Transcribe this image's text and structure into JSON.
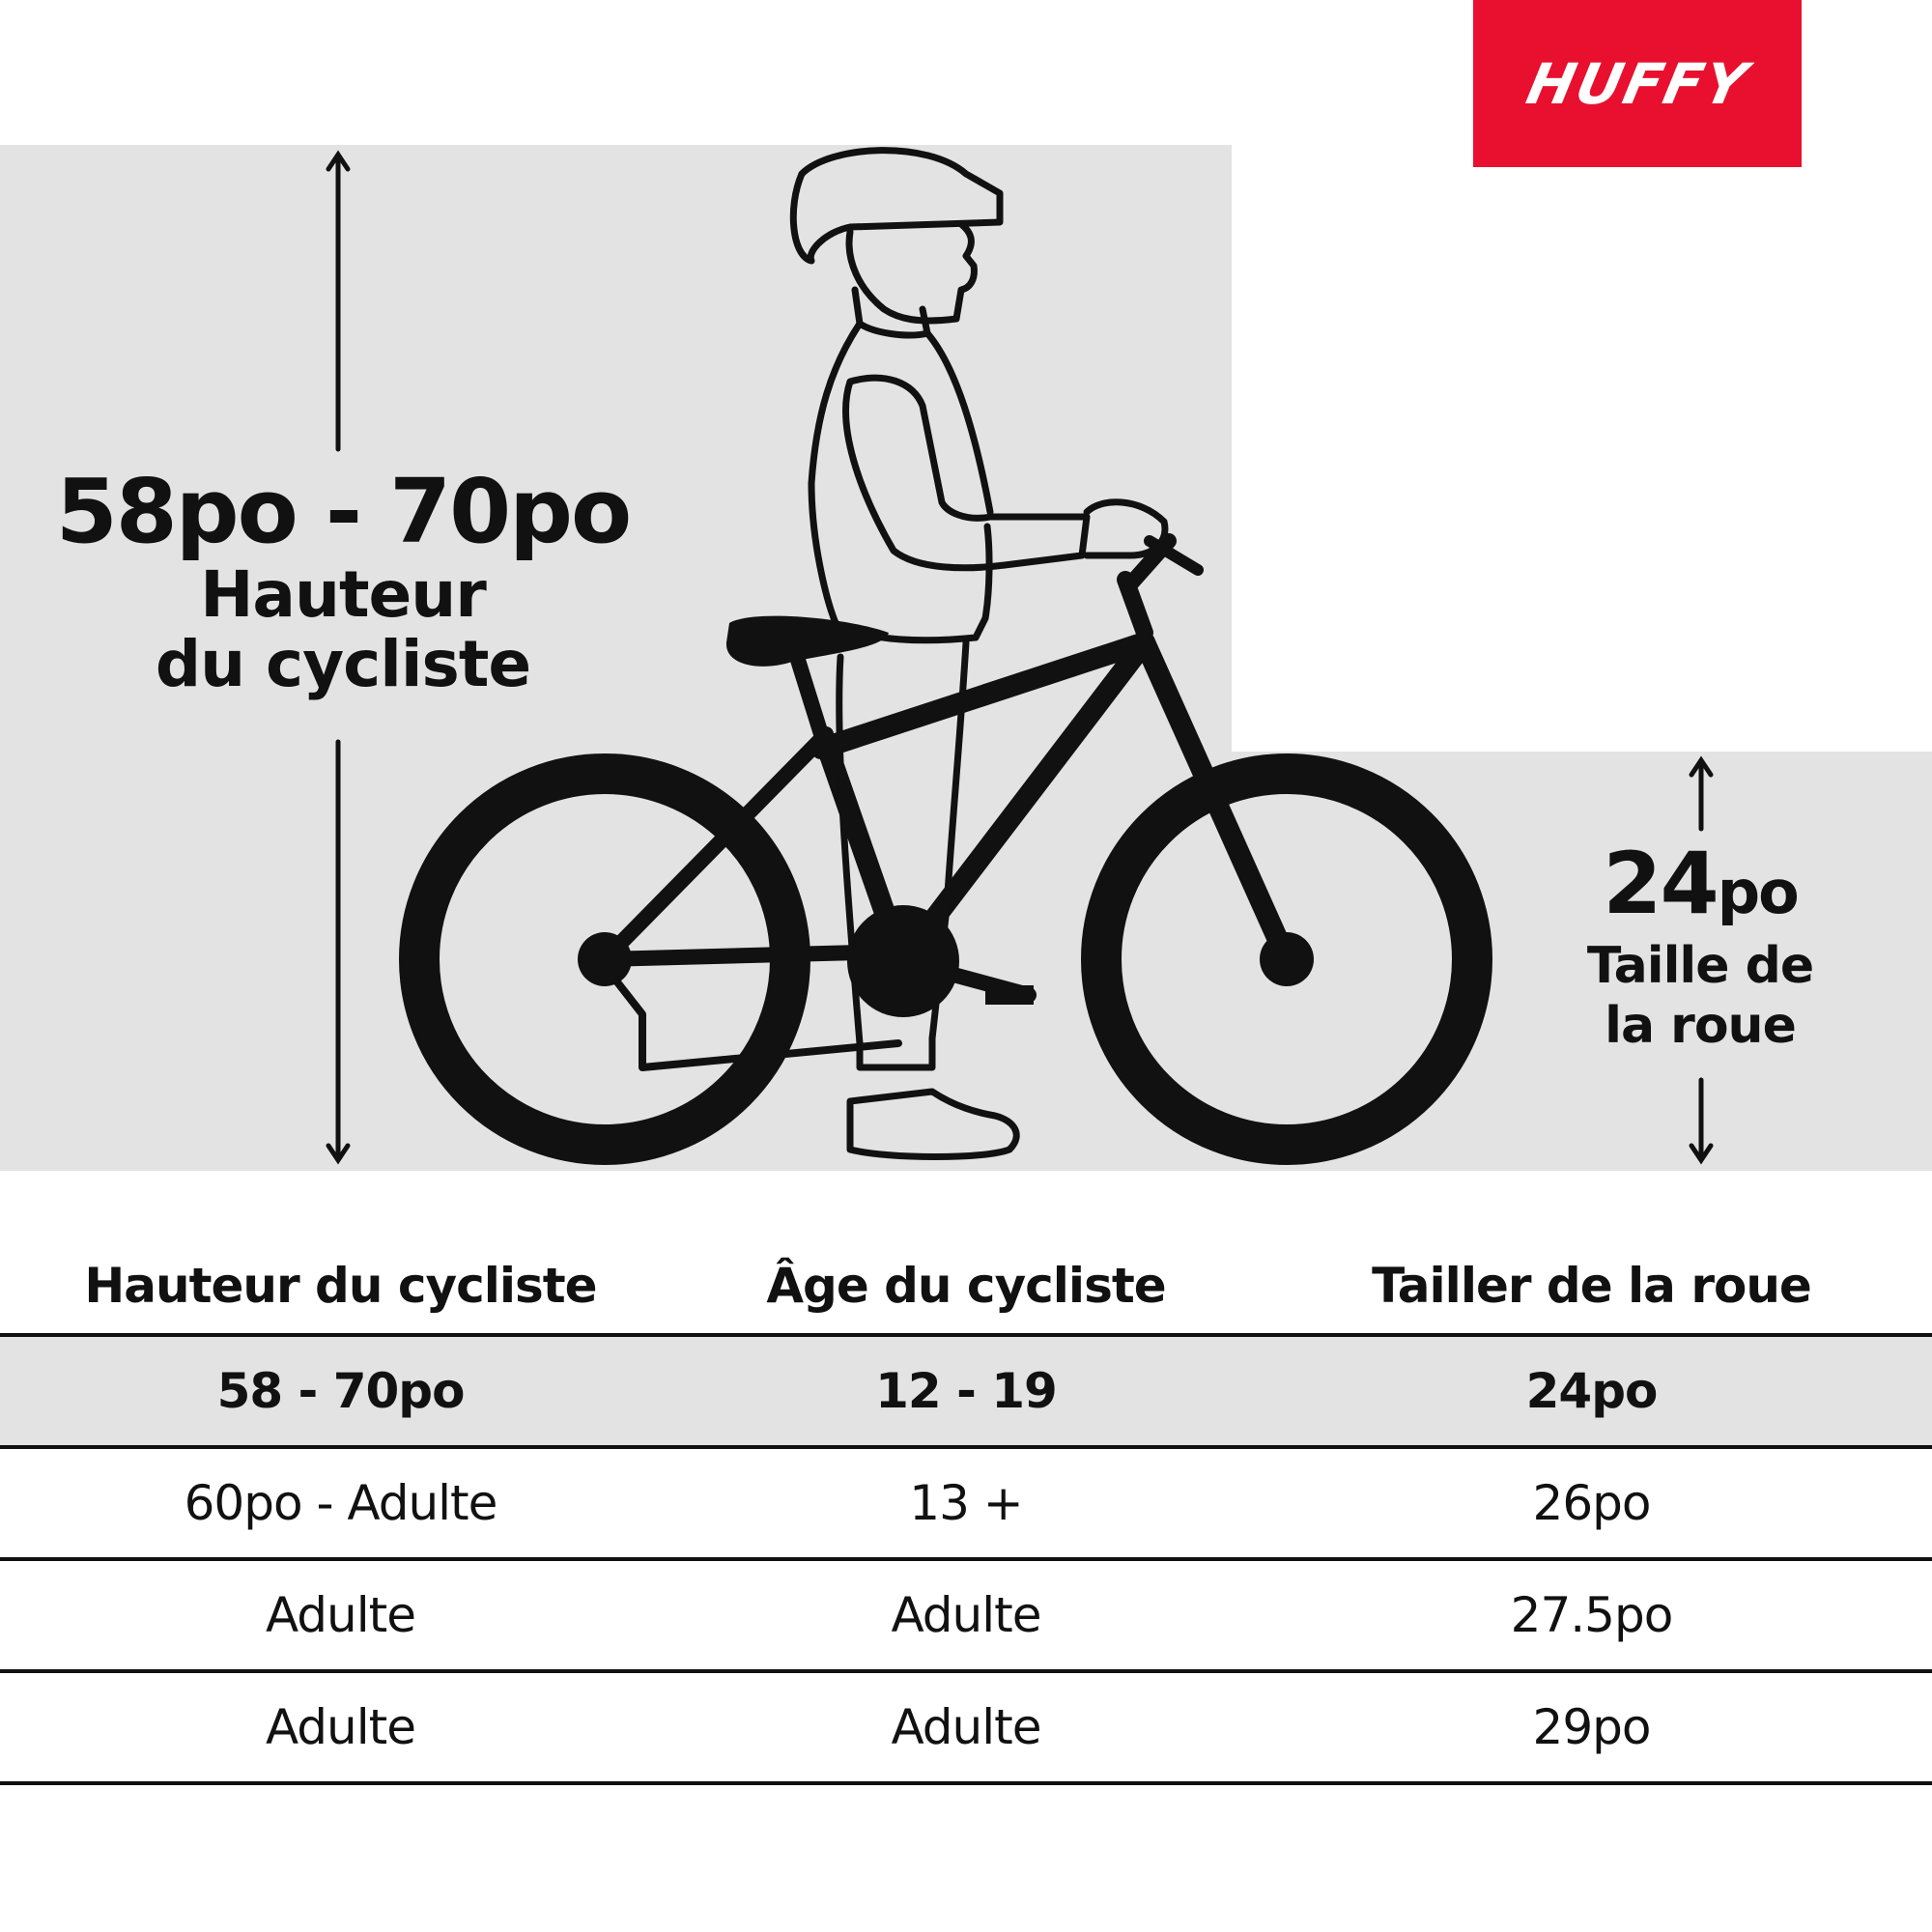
{
  "brand": {
    "logo_text": "HUFFY",
    "logo_color": "#e8102e"
  },
  "rider_height": {
    "range": "58po - 70po",
    "label_line1": "Hauteur",
    "label_line2": "du cycliste"
  },
  "wheel": {
    "size_number": "24",
    "size_unit": "po",
    "label_line1": "Taille de",
    "label_line2": "la roue"
  },
  "table": {
    "headers": [
      "Hauteur du cycliste",
      "Âge du cycliste",
      "Tailler de la roue"
    ],
    "rows": [
      [
        "58 - 70po",
        "12 - 19",
        "24po"
      ],
      [
        "60po - Adulte",
        "13 +",
        "26po"
      ],
      [
        "Adulte",
        "Adulte",
        "27.5po"
      ],
      [
        "Adulte",
        "Adulte",
        "29po"
      ]
    ],
    "highlight_row": 0
  }
}
